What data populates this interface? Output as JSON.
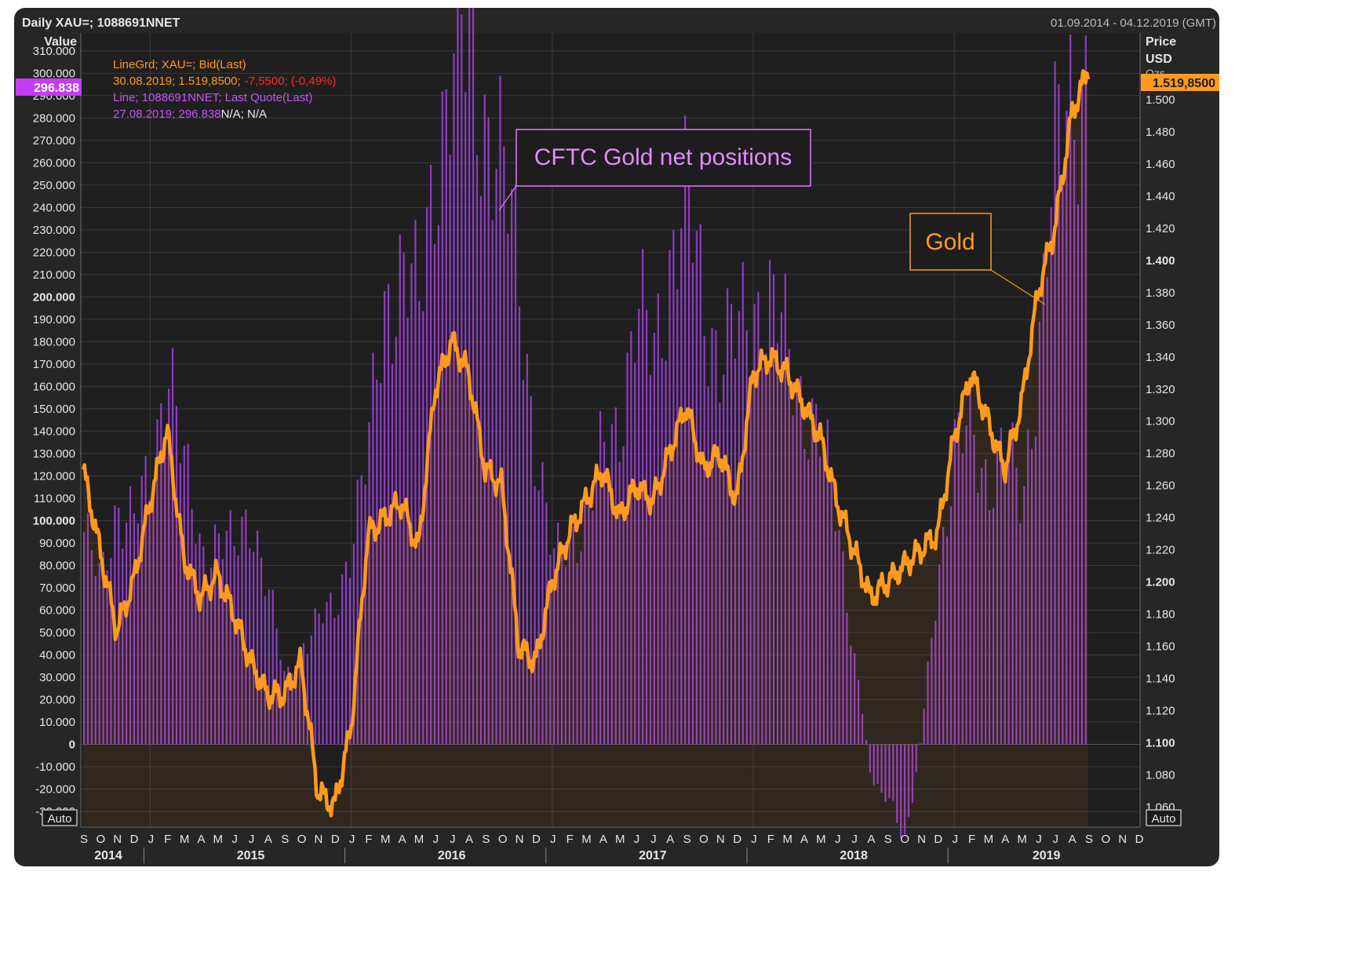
{
  "header": {
    "title": "Daily XAU=; 1088691NNET",
    "date_range": "01.09.2014 - 04.12.2019 (GMT)"
  },
  "chart_data": {
    "type": "bar+line",
    "title": "Daily XAU=; 1088691NNET",
    "date_range": "01.09.2014 - 04.12.2019 (GMT)",
    "left_axis": {
      "title": "Value",
      "range": [
        -37000,
        318000
      ],
      "ticks": [
        310000,
        300000,
        290000,
        280000,
        270000,
        260000,
        250000,
        240000,
        230000,
        220000,
        210000,
        200000,
        190000,
        180000,
        170000,
        160000,
        150000,
        140000,
        130000,
        120000,
        110000,
        100000,
        90000,
        80000,
        70000,
        60000,
        50000,
        40000,
        30000,
        20000,
        10000,
        0,
        -10000,
        -20000,
        -30000
      ],
      "tick_labels": [
        "310.000",
        "300.000",
        "290.000",
        "280.000",
        "270.000",
        "260.000",
        "250.000",
        "240.000",
        "230.000",
        "220.000",
        "210.000",
        "200.000",
        "190.000",
        "180.000",
        "170.000",
        "160.000",
        "150.000",
        "140.000",
        "130.000",
        "120.000",
        "110.000",
        "100.000",
        "90.000",
        "80.000",
        "70.000",
        "60.000",
        "50.000",
        "40.000",
        "30.000",
        "20.000",
        "10.000",
        "0",
        "-10.000",
        "-20.000",
        "-30.000"
      ],
      "bold_ticks": [
        "200.000",
        "100.000",
        "0"
      ],
      "auto_label": "Auto",
      "last_value_label": "296.838"
    },
    "right_axis": {
      "title": "Price",
      "unit": "USD",
      "extra": "Ozs",
      "range": [
        1.0475,
        1.5415
      ],
      "ticks": [
        1.5,
        1.48,
        1.46,
        1.44,
        1.42,
        1.4,
        1.38,
        1.36,
        1.34,
        1.32,
        1.3,
        1.28,
        1.26,
        1.24,
        1.22,
        1.2,
        1.18,
        1.16,
        1.14,
        1.12,
        1.1,
        1.08,
        1.06
      ],
      "tick_labels": [
        "1.500",
        "1.480",
        "1.460",
        "1.440",
        "1.420",
        "1.400",
        "1.380",
        "1.360",
        "1.340",
        "1.320",
        "1.300",
        "1.280",
        "1.260",
        "1.240",
        "1.220",
        "1.200",
        "1.180",
        "1.160",
        "1.140",
        "1.120",
        "1.100",
        "1.080",
        "1.060"
      ],
      "bold_ticks": [
        "1.400",
        "1.200",
        "1.100"
      ],
      "auto_label": "Auto",
      "last_value_label": "1.519,8500"
    },
    "x_axis": {
      "month_labels": [
        "S",
        "O",
        "N",
        "D",
        "J",
        "F",
        "M",
        "A",
        "M",
        "J",
        "J",
        "A",
        "S",
        "O",
        "N",
        "D",
        "J",
        "F",
        "M",
        "A",
        "M",
        "J",
        "J",
        "A",
        "S",
        "O",
        "N",
        "D",
        "J",
        "F",
        "M",
        "A",
        "M",
        "J",
        "J",
        "A",
        "S",
        "O",
        "N",
        "D",
        "J",
        "F",
        "M",
        "A",
        "M",
        "J",
        "J",
        "A",
        "S",
        "O",
        "N",
        "D",
        "J",
        "F",
        "M",
        "A",
        "M",
        "J",
        "J",
        "A",
        "S",
        "O",
        "N",
        "D"
      ],
      "year_labels": [
        "2014",
        "2015",
        "2016",
        "2017",
        "2018",
        "2019"
      ]
    },
    "legend": {
      "line1_name": "LineGrd; XAU=; Bid(Last)",
      "line1_values": "30.08.2019; 1.519,8500;",
      "line1_change": "-7,5500; (-0,49%)",
      "line2_name": "Line; 1088691NNET; Last Quote(Last)",
      "line2_values": "27.08.2019; 296.838",
      "line2_na": "N/A; N/A"
    },
    "annotations": {
      "positions": "CFTC Gold net positions",
      "gold": "Gold"
    },
    "series": [
      {
        "name": "CFTC Gold net positions (1088691NNET)",
        "style": "bars",
        "color": "#9b3fd6",
        "monthly_x": [
          0,
          1,
          2,
          3,
          4,
          5,
          6,
          7,
          8,
          9,
          10,
          11,
          12,
          13,
          14,
          15,
          16,
          17,
          18,
          19,
          20,
          21,
          22,
          23,
          24,
          25,
          26,
          27,
          28,
          29,
          30,
          31,
          32,
          33,
          34,
          35,
          36,
          37,
          38,
          39,
          40,
          41,
          42,
          43,
          44,
          45,
          46,
          47,
          48,
          49,
          50,
          51,
          52,
          53,
          54,
          55,
          56,
          57,
          58,
          59,
          60
        ],
        "values": [
          95000,
          70000,
          110000,
          100000,
          115000,
          180000,
          120000,
          85000,
          95000,
          85000,
          105000,
          70000,
          28000,
          45000,
          55000,
          60000,
          95000,
          130000,
          200000,
          215000,
          190000,
          270000,
          300000,
          310000,
          285000,
          250000,
          210000,
          130000,
          80000,
          95000,
          100000,
          130000,
          150000,
          190000,
          175000,
          220000,
          240000,
          200000,
          175000,
          180000,
          200000,
          195000,
          175000,
          155000,
          135000,
          100000,
          40000,
          -15000,
          -25000,
          -45000,
          5000,
          80000,
          130000,
          140000,
          120000,
          130000,
          110000,
          180000,
          260000,
          300000,
          296838
        ]
      },
      {
        "name": "Gold (XAU=)",
        "style": "line",
        "color": "#ff9a1f",
        "monthly_x": [
          0,
          1,
          2,
          3,
          4,
          5,
          6,
          7,
          8,
          9,
          10,
          11,
          12,
          13,
          14,
          15,
          16,
          17,
          18,
          19,
          20,
          21,
          22,
          23,
          24,
          25,
          26,
          27,
          28,
          29,
          30,
          31,
          32,
          33,
          34,
          35,
          36,
          37,
          38,
          39,
          40,
          41,
          42,
          43,
          44,
          45,
          46,
          47,
          48,
          49,
          50,
          51,
          52,
          53,
          54,
          55,
          56,
          57,
          58,
          59,
          60
        ],
        "values": [
          1.27,
          1.22,
          1.17,
          1.2,
          1.25,
          1.295,
          1.215,
          1.19,
          1.205,
          1.18,
          1.15,
          1.13,
          1.13,
          1.15,
          1.07,
          1.06,
          1.11,
          1.23,
          1.24,
          1.25,
          1.22,
          1.32,
          1.35,
          1.33,
          1.27,
          1.26,
          1.16,
          1.15,
          1.2,
          1.23,
          1.25,
          1.27,
          1.24,
          1.26,
          1.25,
          1.28,
          1.31,
          1.27,
          1.28,
          1.25,
          1.33,
          1.34,
          1.33,
          1.31,
          1.29,
          1.25,
          1.22,
          1.19,
          1.2,
          1.21,
          1.22,
          1.23,
          1.29,
          1.33,
          1.3,
          1.27,
          1.31,
          1.38,
          1.42,
          1.49,
          1.5198
        ]
      }
    ]
  }
}
